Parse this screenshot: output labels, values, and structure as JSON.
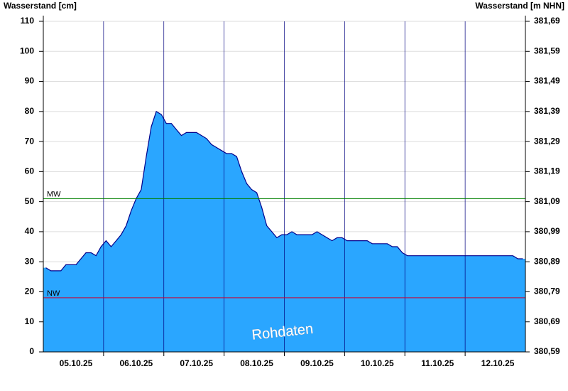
{
  "chart_data": {
    "type": "area",
    "y_label": "Wasserstand [cm]",
    "y2_label": "Wasserstand [m NHN]",
    "annotation": "Rohdaten",
    "categories": [
      null,
      null,
      null,
      null,
      null,
      null,
      "05.10.25",
      null,
      null,
      null,
      null,
      null,
      null,
      null,
      null,
      null,
      null,
      null,
      "06.10.25",
      null,
      null,
      null,
      null,
      null,
      null,
      null,
      null,
      null,
      null,
      null,
      "07.10.25",
      null,
      null,
      null,
      null,
      null,
      null,
      null,
      null,
      null,
      null,
      null,
      "08.10.25",
      null,
      null,
      null,
      null,
      null,
      null,
      null,
      null,
      null,
      null,
      null,
      "09.10.25",
      null,
      null,
      null,
      null,
      null,
      null,
      null,
      null,
      null,
      null,
      null,
      "10.10.25",
      null,
      null,
      null,
      null,
      null,
      null,
      null,
      null,
      null,
      null,
      null,
      "11.10.25",
      null,
      null,
      null,
      null,
      null,
      null,
      null,
      null,
      null,
      null,
      null,
      "12.10.25",
      null,
      null,
      null,
      null,
      null
    ],
    "series": [
      {
        "color": "#2aa6ff",
        "line_color": "#00008b",
        "values": [
          28,
          27,
          27,
          27,
          29,
          29,
          29,
          31,
          33,
          33,
          32,
          35,
          37,
          35,
          37,
          39,
          42,
          47,
          51,
          54,
          65,
          75,
          80,
          79,
          76,
          76,
          74,
          72,
          73,
          73,
          73,
          72,
          71,
          69,
          68,
          67,
          66,
          66,
          65,
          60,
          56,
          54,
          53,
          48,
          42,
          40,
          38,
          39,
          39,
          40,
          39,
          39,
          39,
          39,
          40,
          39,
          38,
          37,
          38,
          38,
          37,
          37,
          37,
          37,
          37,
          36,
          36,
          36,
          36,
          35,
          35,
          33,
          32,
          32,
          32,
          32,
          32,
          32,
          32,
          32,
          32,
          32,
          32,
          32,
          32,
          32,
          32,
          32,
          32,
          32,
          32,
          32,
          32,
          32,
          31,
          31
        ]
      }
    ],
    "reference_lines": [
      {
        "label": "MW",
        "value": 51,
        "color": "#008000"
      },
      {
        "label": "NW",
        "value": 18,
        "color": "#cc0033"
      }
    ],
    "ylim": [
      0,
      110
    ],
    "yticks": [
      0,
      10,
      20,
      30,
      40,
      50,
      60,
      70,
      80,
      90,
      100,
      110
    ],
    "y2lim": [
      380.59,
      381.69
    ],
    "y2ticks": [
      {
        "value": 380.59,
        "label": "380,59"
      },
      {
        "value": 380.69,
        "label": "380,69"
      },
      {
        "value": 380.79,
        "label": "380,79"
      },
      {
        "value": 380.89,
        "label": "380,89"
      },
      {
        "value": 380.99,
        "label": "380,99"
      },
      {
        "value": 381.09,
        "label": "381,09"
      },
      {
        "value": 381.19,
        "label": "381,19"
      },
      {
        "value": 381.29,
        "label": "381,29"
      },
      {
        "value": 381.39,
        "label": "381,39"
      },
      {
        "value": 381.49,
        "label": "381,49"
      },
      {
        "value": 381.59,
        "label": "381,59"
      },
      {
        "value": 381.69,
        "label": "381,69"
      }
    ],
    "grid": true
  }
}
